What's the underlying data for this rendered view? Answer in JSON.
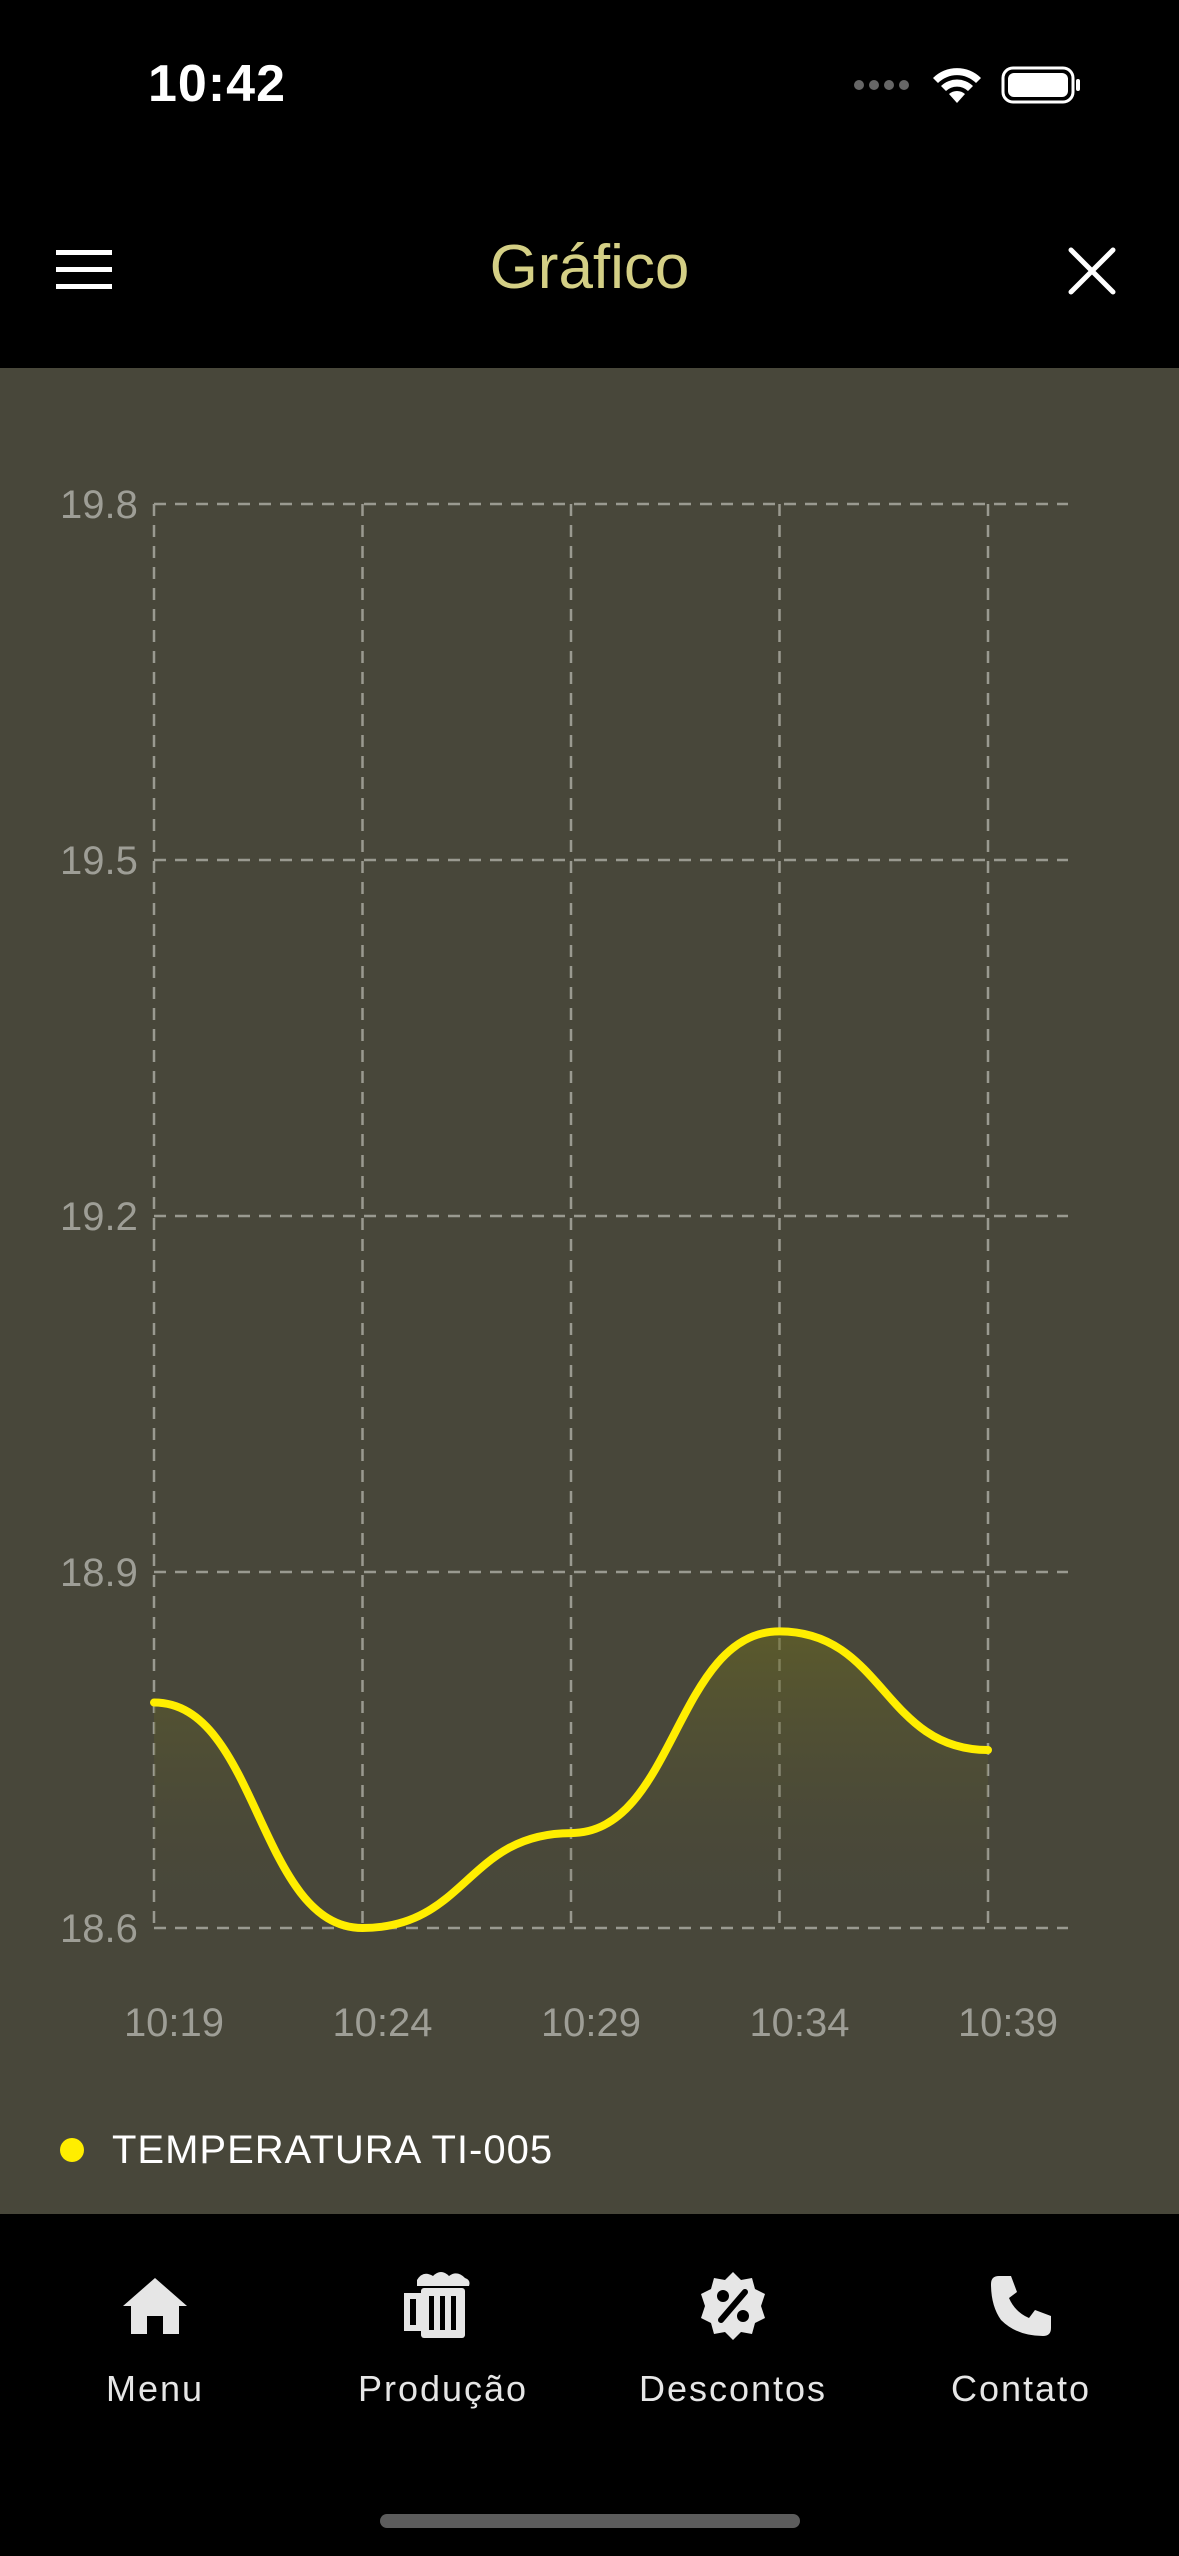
{
  "status_bar": {
    "time": "10:42"
  },
  "header": {
    "title": "Gráfico"
  },
  "colors": {
    "accent_title": "#d4cf85",
    "chart_background": "#48473a",
    "series_line": "#ffee00",
    "grid": "#9a9a90"
  },
  "icons": {
    "menu": "hamburger-icon",
    "close": "close-icon",
    "home": "home-icon",
    "production": "beer-mug-icon",
    "discounts": "percent-badge-icon",
    "contact": "phone-icon"
  },
  "chart_data": {
    "type": "line",
    "title": "",
    "xlabel": "",
    "ylabel": "",
    "categories": [
      "10:19",
      "10:24",
      "10:29",
      "10:34",
      "10:39"
    ],
    "y_ticks": [
      "19.8",
      "19.5",
      "19.2",
      "18.9",
      "18.6"
    ],
    "ylim": [
      18.6,
      19.8
    ],
    "grid": true,
    "legend_position": "bottom-left",
    "series": [
      {
        "name": "TEMPERATURA TI-005",
        "smooth": true,
        "filled": true,
        "values": [
          18.79,
          18.6,
          18.68,
          18.85,
          18.75
        ]
      }
    ]
  },
  "bottom_nav": {
    "items": [
      {
        "label": "Menu"
      },
      {
        "label": "Produção"
      },
      {
        "label": "Descontos"
      },
      {
        "label": "Contato"
      }
    ]
  }
}
